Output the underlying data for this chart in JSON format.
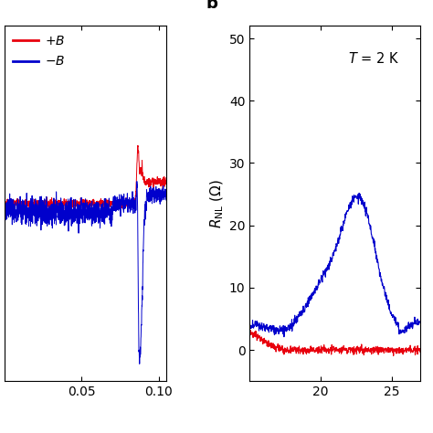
{
  "legend_labels": [
    "+B",
    "−B"
  ],
  "red_color": "#e8000d",
  "blue_color": "#0000cc",
  "panel_a_xlim": [
    0.0,
    0.105
  ],
  "panel_a_ylim": [
    -6.5,
    6.5
  ],
  "panel_a_xticks": [
    0.05,
    0.1
  ],
  "panel_a_xtick_labels": [
    "0.05",
    "0.10"
  ],
  "panel_b_ylabel": "R_NL (Omega)",
  "panel_b_annotation": "T = 2 K",
  "panel_b_ylim": [
    -5,
    52
  ],
  "panel_b_yticks": [
    0,
    10,
    20,
    30,
    40,
    50
  ],
  "panel_b_xlim": [
    15.0,
    27.0
  ],
  "panel_b_xticks": [
    20,
    25
  ],
  "panel_b_xtick_labels": [
    "20",
    "25"
  ],
  "label_b_text": "b"
}
